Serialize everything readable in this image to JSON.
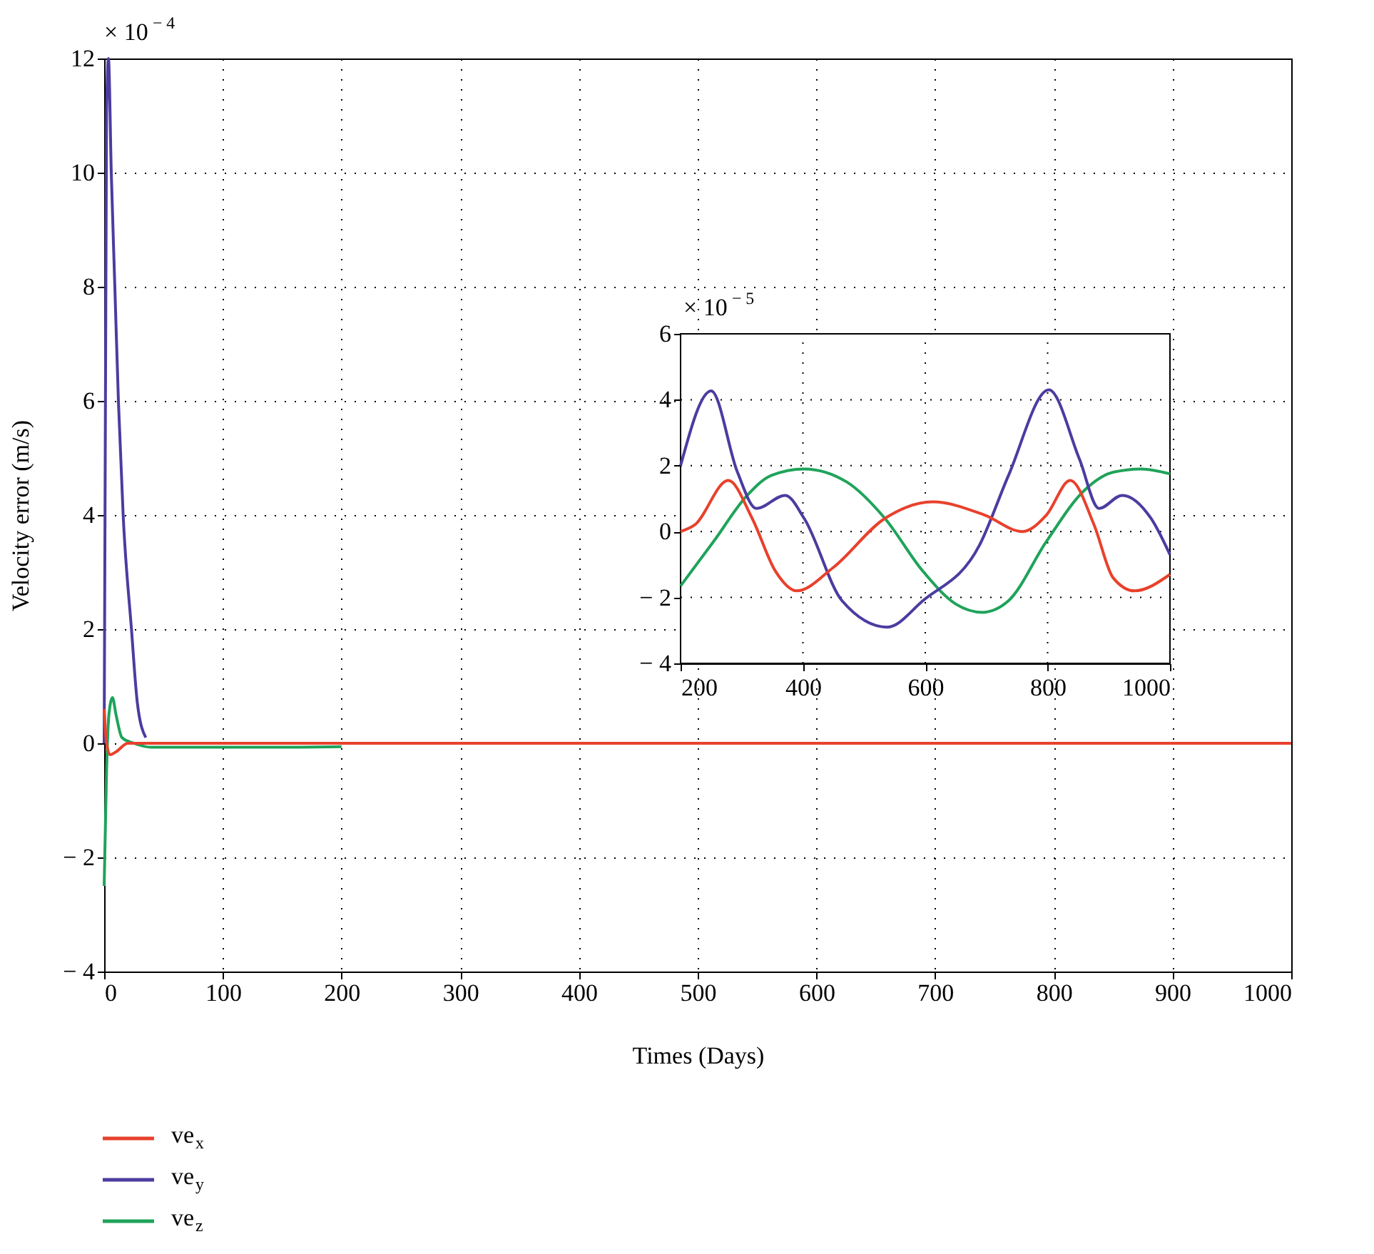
{
  "chart_data": [
    {
      "type": "line",
      "xlabel": "Times (Days)",
      "ylabel": "Velocity error (m/s)",
      "xlim": [
        0,
        1000
      ],
      "xticks": [
        0,
        100,
        200,
        300,
        400,
        500,
        600,
        700,
        800,
        900,
        1000
      ],
      "ylim": [
        -4,
        12
      ],
      "yticks": [
        -4,
        -2,
        0,
        2,
        4,
        6,
        8,
        10,
        12
      ],
      "grid": true,
      "legend": "bottom left",
      "annotations": [
        "× 10$^{− 4}$"
      ],
      "series": [
        {
          "name": "ve$_{x}$",
          "color": "#e8412c",
          "x": [
            0,
            2,
            5,
            10,
            20,
            40,
            100,
            200,
            300,
            400,
            500,
            600,
            700,
            800,
            900,
            1000
          ],
          "values": [
            0.6,
            0,
            -0.2,
            -0.15,
            0,
            0,
            0,
            0,
            0,
            0,
            0,
            0,
            0,
            0,
            0,
            0
          ]
        },
        {
          "name": "ve$_{y}$",
          "color": "#4b3ca0",
          "x": [
            0,
            2,
            3.6,
            6,
            9,
            12,
            16,
            23,
            28,
            35
          ],
          "values": [
            0,
            11,
            12,
            10,
            8,
            6,
            4,
            2,
            0.7,
            0.1
          ]
        },
        {
          "name": "ve$_{z}$",
          "color": "#1fa35a",
          "x": [
            0,
            2,
            4,
            7,
            10,
            15,
            25,
            40,
            150,
            200
          ],
          "values": [
            -2.5,
            -0.5,
            0.5,
            0.8,
            0.5,
            0.1,
            0,
            -0.07,
            -0.07,
            -0.06
          ]
        }
      ]
    },
    {
      "type": "line",
      "xlim": [
        200,
        1000
      ],
      "xticks": [
        200,
        400,
        600,
        800,
        1000
      ],
      "ylim": [
        -4,
        6
      ],
      "yticks": [
        -4,
        -2,
        0,
        2,
        4,
        6
      ],
      "grid": true,
      "annotations": [
        "× 10$^{− 5}$"
      ],
      "series": [
        {
          "color": "#e8412c",
          "x": [
            200,
            223,
            278,
            317,
            355,
            390,
            449,
            534,
            612,
            697,
            759,
            798,
            837,
            876,
            907,
            942,
            1000
          ],
          "values": [
            0,
            0.2,
            1.55,
            0.4,
            -1.2,
            -1.8,
            -1.1,
            0.4,
            0.9,
            0.5,
            0,
            0.5,
            1.55,
            0.2,
            -1.4,
            -1.8,
            -1.3
          ]
        },
        {
          "color": "#4b3ca0",
          "x": [
            200,
            250,
            293,
            324,
            371,
            402,
            464,
            538,
            596,
            689,
            736,
            802,
            852,
            884,
            922,
            969,
            1000
          ],
          "values": [
            2.0,
            4.27,
            1.8,
            0.7,
            1.1,
            0.4,
            -2.1,
            -2.9,
            -2.1,
            -0.4,
            1.7,
            4.3,
            2.2,
            0.7,
            1.1,
            0.4,
            -0.7
          ]
        },
        {
          "color": "#1fa35a",
          "x": [
            200,
            254,
            309,
            348,
            402,
            472,
            534,
            596,
            650,
            693,
            736,
            798,
            860,
            907,
            953,
            1000
          ],
          "values": [
            -1.65,
            -0.3,
            1.1,
            1.7,
            1.9,
            1.5,
            0.4,
            -1.2,
            -2.2,
            -2.45,
            -2.1,
            -0.3,
            1.25,
            1.8,
            1.9,
            1.75
          ]
        }
      ]
    }
  ]
}
